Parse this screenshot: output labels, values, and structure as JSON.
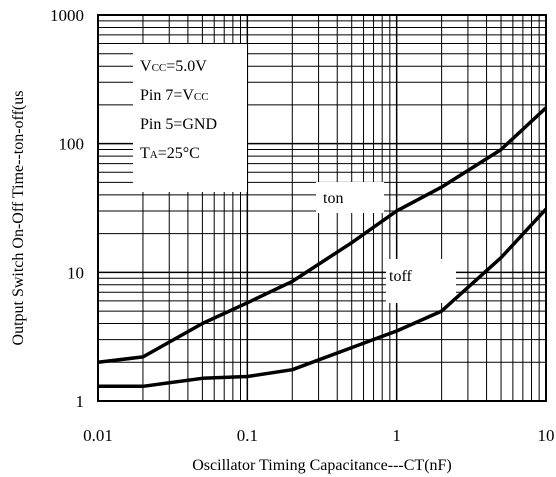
{
  "chart_data": {
    "type": "line",
    "xscale": "log",
    "yscale": "log",
    "xlim": [
      0.01,
      10
    ],
    "ylim": [
      1,
      1000
    ],
    "grid": true,
    "xlabel": "Oscillator Timing Capacitance---CT(nF)",
    "ylabel": "Output Switch On-Off Time--ton-off(us",
    "x_ticks": [
      "0.01",
      "0.1",
      "1",
      "10"
    ],
    "y_ticks": [
      "1",
      "10",
      "100",
      "1000"
    ],
    "conditions": [
      {
        "main": "V",
        "sub": "CC",
        "rest": "=5.0V"
      },
      {
        "main": "Pin 7=V",
        "sub": "CC",
        "rest": ""
      },
      {
        "main": "Pin 5=GND",
        "sub": "",
        "rest": ""
      },
      {
        "main": "T",
        "sub": "A",
        "rest": "=25°C"
      }
    ],
    "series": [
      {
        "name": "ton",
        "x": [
          0.01,
          0.02,
          0.05,
          0.1,
          0.2,
          0.5,
          1,
          2,
          5,
          10
        ],
        "y": [
          2.0,
          2.2,
          4.0,
          5.8,
          8.5,
          17,
          30,
          46,
          90,
          190
        ]
      },
      {
        "name": "toff",
        "x": [
          0.01,
          0.02,
          0.05,
          0.1,
          0.2,
          0.5,
          1,
          2,
          5,
          10
        ],
        "y": [
          1.3,
          1.3,
          1.5,
          1.55,
          1.75,
          2.6,
          3.5,
          5.0,
          13,
          31
        ]
      }
    ]
  }
}
